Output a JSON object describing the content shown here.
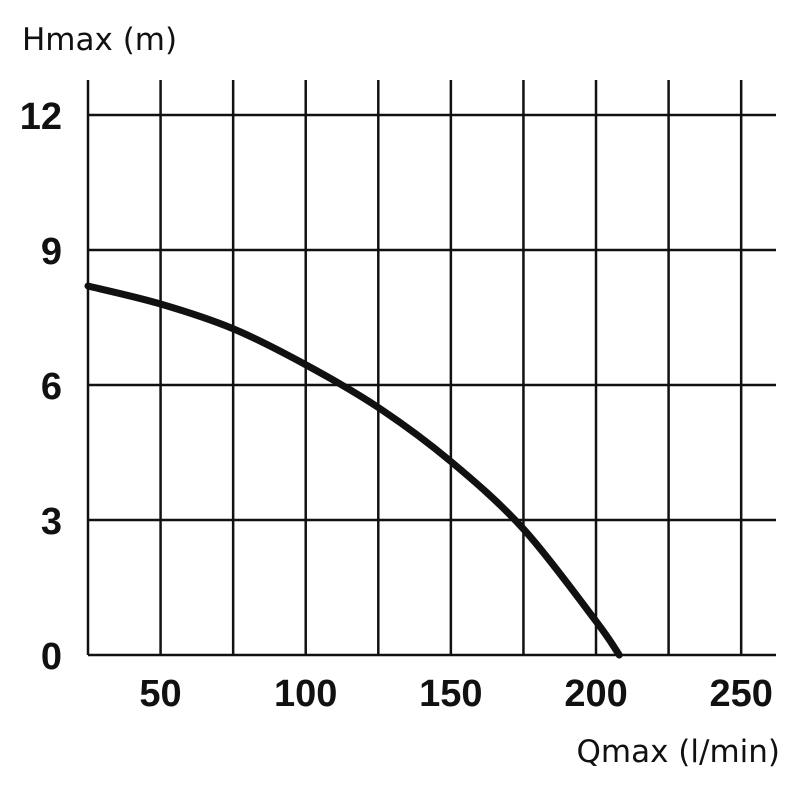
{
  "chart_data": {
    "type": "line",
    "title": "",
    "xlabel": "Qmax (l/min)",
    "ylabel": "Hmax (m)",
    "xlim": [
      25,
      262
    ],
    "ylim": [
      0,
      12
    ],
    "x_ticks": [
      50,
      100,
      150,
      200,
      250
    ],
    "y_ticks": [
      0,
      3,
      6,
      9,
      12
    ],
    "x_grid": [
      25,
      50,
      75,
      100,
      125,
      150,
      175,
      200,
      225,
      250
    ],
    "y_grid": [
      0,
      3,
      6,
      9,
      12
    ],
    "grid": true,
    "series": [
      {
        "x": [
          25,
          50,
          75,
          100,
          125,
          150,
          175,
          200,
          208
        ],
        "y": [
          8.2,
          7.8,
          7.25,
          6.45,
          5.5,
          4.3,
          2.8,
          0.75,
          0
        ]
      }
    ]
  }
}
